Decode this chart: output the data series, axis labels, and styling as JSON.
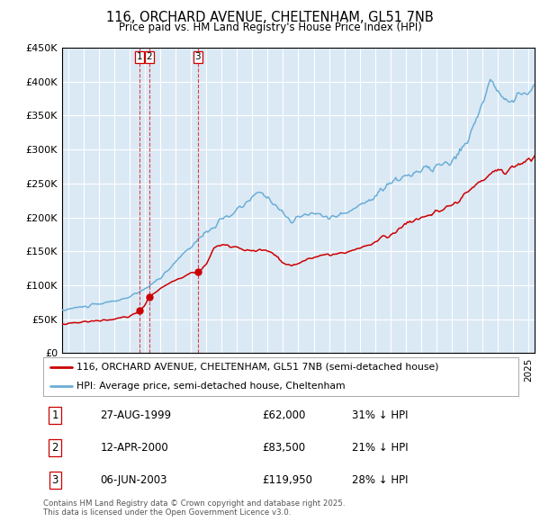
{
  "title": "116, ORCHARD AVENUE, CHELTENHAM, GL51 7NB",
  "subtitle": "Price paid vs. HM Land Registry's House Price Index (HPI)",
  "legend_line1": "116, ORCHARD AVENUE, CHELTENHAM, GL51 7NB (semi-detached house)",
  "legend_line2": "HPI: Average price, semi-detached house, Cheltenham",
  "footer": "Contains HM Land Registry data © Crown copyright and database right 2025.\nThis data is licensed under the Open Government Licence v3.0.",
  "transactions": [
    {
      "id": 1,
      "date": "27-AUG-1999",
      "price": 62000,
      "price_str": "£62,000",
      "pct": "31% ↓ HPI",
      "year": 1999.65
    },
    {
      "id": 2,
      "date": "12-APR-2000",
      "price": 83500,
      "price_str": "£83,500",
      "pct": "21% ↓ HPI",
      "year": 2000.28
    },
    {
      "id": 3,
      "date": "06-JUN-2003",
      "price": 119950,
      "price_str": "£119,950",
      "pct": "28% ↓ HPI",
      "year": 2003.44
    }
  ],
  "red_color": "#cc0000",
  "blue_color": "#6baed6",
  "grid_color": "#ffffff",
  "plot_bg": "#dbe9f5",
  "ylim": [
    0,
    450000
  ],
  "xlim_start": 1994.6,
  "xlim_end": 2025.4,
  "hpi_seed": 10,
  "price_seed": 20
}
